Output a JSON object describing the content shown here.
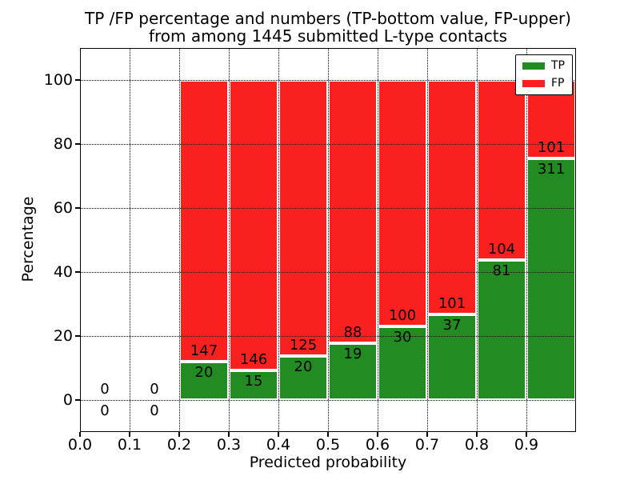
{
  "title": {
    "line1": "TP /FP percentage and numbers (TP-bottom value, FP-upper)",
    "line2": "from among 1445 submitted L-type contacts"
  },
  "chart_data": {
    "type": "bar",
    "stacked": true,
    "normalized": "each non-empty bin stacks to 100%",
    "title": "TP /FP percentage and numbers (TP-bottom value, FP-upper) from among 1445 submitted L-type contacts",
    "xlabel": "Predicted probability",
    "ylabel": "Percentage",
    "xlim": [
      0.0,
      1.0
    ],
    "ylim": [
      -10,
      110
    ],
    "x_ticks": [
      "0.0",
      "0.1",
      "0.2",
      "0.3",
      "0.4",
      "0.5",
      "0.6",
      "0.7",
      "0.8",
      "0.9"
    ],
    "y_ticks": [
      0,
      20,
      40,
      60,
      80,
      100
    ],
    "grid": "dotted, drawn above bars",
    "bar_edge_color": "#ffffff",
    "colors": {
      "tp": "#228b22",
      "fp": "#f92020"
    },
    "legend": {
      "position": "upper right",
      "entries": [
        {
          "label": "TP",
          "color": "#228b22"
        },
        {
          "label": "FP",
          "color": "#f92020"
        }
      ]
    },
    "total_contacts": 1445,
    "categories": [
      "0.0-0.1",
      "0.1-0.2",
      "0.2-0.3",
      "0.3-0.4",
      "0.4-0.5",
      "0.5-0.6",
      "0.6-0.7",
      "0.7-0.8",
      "0.8-0.9",
      "0.9-1.0"
    ],
    "bins": [
      {
        "x_start": 0.0,
        "x_end": 0.1,
        "tp": 0,
        "fp": 0,
        "tp_percent": null
      },
      {
        "x_start": 0.1,
        "x_end": 0.2,
        "tp": 0,
        "fp": 0,
        "tp_percent": null
      },
      {
        "x_start": 0.2,
        "x_end": 0.3,
        "tp": 20,
        "fp": 147,
        "tp_percent": 11.98
      },
      {
        "x_start": 0.3,
        "x_end": 0.4,
        "tp": 15,
        "fp": 146,
        "tp_percent": 9.32
      },
      {
        "x_start": 0.4,
        "x_end": 0.5,
        "tp": 20,
        "fp": 125,
        "tp_percent": 13.79
      },
      {
        "x_start": 0.5,
        "x_end": 0.6,
        "tp": 19,
        "fp": 88,
        "tp_percent": 17.76
      },
      {
        "x_start": 0.6,
        "x_end": 0.7,
        "tp": 30,
        "fp": 100,
        "tp_percent": 23.08
      },
      {
        "x_start": 0.7,
        "x_end": 0.8,
        "tp": 37,
        "fp": 101,
        "tp_percent": 26.81
      },
      {
        "x_start": 0.8,
        "x_end": 0.9,
        "tp": 81,
        "fp": 104,
        "tp_percent": 43.78
      },
      {
        "x_start": 0.9,
        "x_end": 1.0,
        "tp": 311,
        "fp": 101,
        "tp_percent": 75.49
      }
    ]
  }
}
